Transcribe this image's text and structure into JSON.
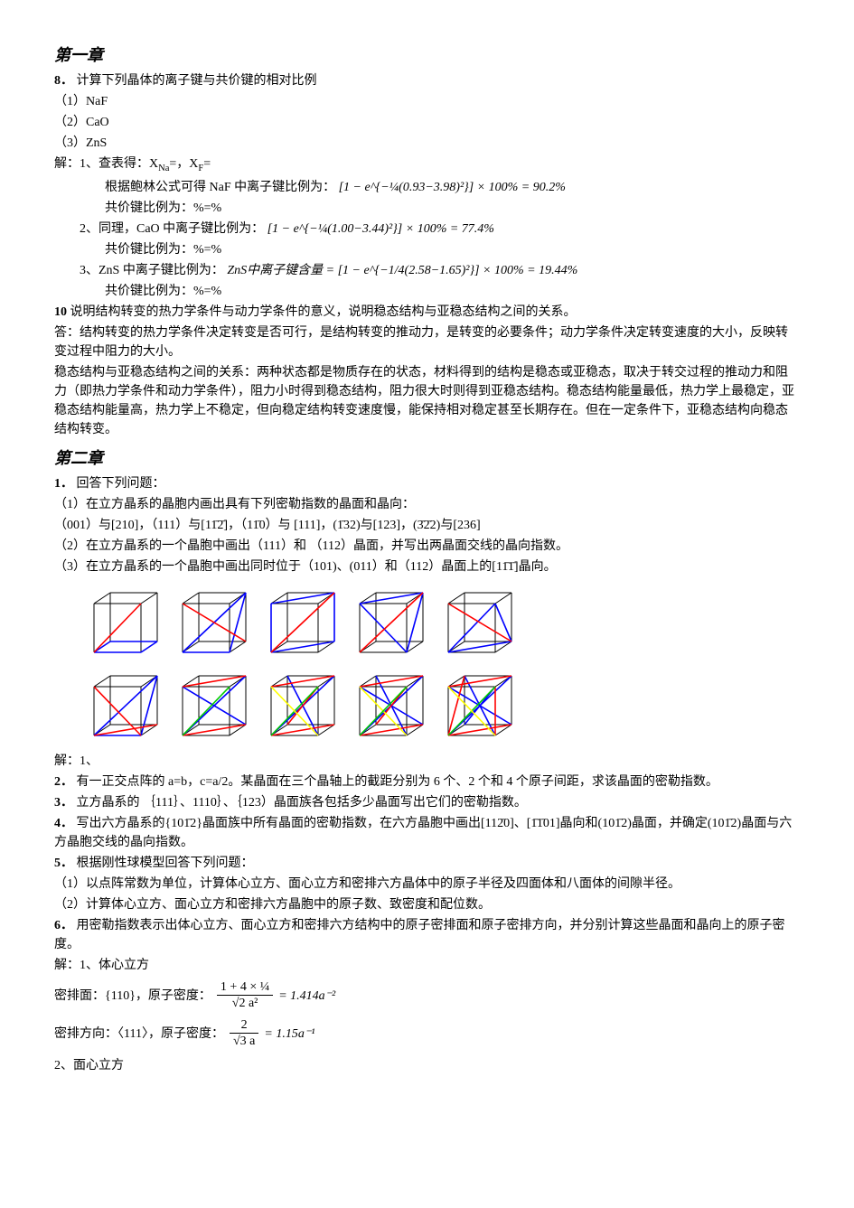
{
  "ch1": {
    "title": "第一章",
    "q8": {
      "num": "8．",
      "stem": "计算下列晶体的离子键与共价键的相对比例",
      "items": [
        "（1）NaF",
        "（2）CaO",
        "（3）ZnS"
      ],
      "sol_label": "解：1、查表得：X",
      "sol_label_sub1": "Na",
      "sol_label_mid": "=，X",
      "sol_label_sub2": "F",
      "sol_label_end": "=",
      "line1a": "根据鲍林公式可得 NaF 中离子键比例为：",
      "formula1": "[1 − e^{−¼(0.93−3.98)²}] × 100% = 90.2%",
      "line1b": "共价键比例为：%=%",
      "line2a": "2、同理，CaO 中离子键比例为：",
      "formula2": "[1 − e^{−¼(1.00−3.44)²}] × 100% = 77.4%",
      "line2b": "共价键比例为：%=%",
      "line3a": "3、ZnS 中离子键比例为：",
      "formula3_lhs": "ZnS中离子键含量",
      "formula3_rhs": " = [1 − e^{−1/4(2.58−1.65)²}] × 100% = 19.44%",
      "line3b": "共价键比例为：%=%"
    },
    "q10": {
      "num": "10",
      "stem": " 说明结构转变的热力学条件与动力学条件的意义，说明稳态结构与亚稳态结构之间的关系。",
      "ans1": "答：结构转变的热力学条件决定转变是否可行，是结构转变的推动力，是转变的必要条件；动力学条件决定转变速度的大小，反映转变过程中阻力的大小。",
      "ans2": "稳态结构与亚稳态结构之间的关系：两种状态都是物质存在的状态，材料得到的结构是稳态或亚稳态，取决于转交过程的推动力和阻力（即热力学条件和动力学条件），阻力小时得到稳态结构，阻力很大时则得到亚稳态结构。稳态结构能量最低，热力学上最稳定，亚稳态结构能量高，热力学上不稳定，但向稳定结构转变速度慢，能保持相对稳定甚至长期存在。但在一定条件下，亚稳态结构向稳态结构转变。"
    }
  },
  "ch2": {
    "title": "第二章",
    "q1": {
      "num": "1．",
      "stem": "回答下列问题：",
      "p1": "（1）在立方晶系的晶胞内画出具有下列密勒指数的晶面和晶向：",
      "p1b": "（001）与[210]，（111）与[11̄2̄]，（11̄0）与 [111]，(1̄32)与[123]，(3̄2̄2)与[236]",
      "p2": "（2）在立方晶系的一个晶胞中画出（111）和 （112）晶面，并写出两晶面交线的晶向指数。",
      "p3": "（3）在立方晶系的一个晶胞中画出同时位于（101)、(011）和（112）晶面上的[11̄1̄]晶向。"
    },
    "q1sol": "解：1、",
    "q2": {
      "num": "2．",
      "stem": "有一正交点阵的 a=b，c=a/2。某晶面在三个晶轴上的截距分别为 6 个、2 个和 4 个原子间距，求该晶面的密勒指数。"
    },
    "q3": {
      "num": "3．",
      "stem": "立方晶系的 ｛111｝、1110｝、｛123）晶面族各包括多少晶面写出它们的密勒指数。"
    },
    "q4": {
      "num": "4．",
      "stem": "写出六方晶系的{101̄2}晶面族中所有晶面的密勒指数，在六方晶胞中画出[112̄0]、[1̄1̄01]晶向和(101̄2)晶面，并确定(101̄2)晶面与六方晶胞交线的晶向指数。"
    },
    "q5": {
      "num": "5．",
      "stem": "根据刚性球模型回答下列问题：",
      "p1": "（1）以点阵常数为单位，计算体心立方、面心立方和密排六方晶体中的原子半径及四面体和八面体的间隙半径。",
      "p2": "（2）计算体心立方、面心立方和密排六方晶胞中的原子数、致密度和配位数。"
    },
    "q6": {
      "num": "6．",
      "stem": "用密勒指数表示出体心立方、面心立方和密排六方结构中的原子密排面和原子密排方向，并分别计算这些晶面和晶向上的原子密度。",
      "sol": "解：1、体心立方",
      "row1_label": "密排面：{110}，原子密度：",
      "row1_num": "1 + 4 × ¼",
      "row1_den": "√2 a²",
      "row1_res": " = 1.414a⁻²",
      "row2_label": "密排方向：〈111〉，原子密度：",
      "row2_num": "2",
      "row2_den": "√3 a",
      "row2_res": " = 1.15a⁻¹",
      "sol2": "2、面心立方"
    }
  },
  "diagrams": {
    "cube_stroke": "#000000",
    "red": "#ff0000",
    "blue": "#0000ff",
    "green": "#00cc00",
    "yellow": "#ffff00",
    "size": 78
  }
}
